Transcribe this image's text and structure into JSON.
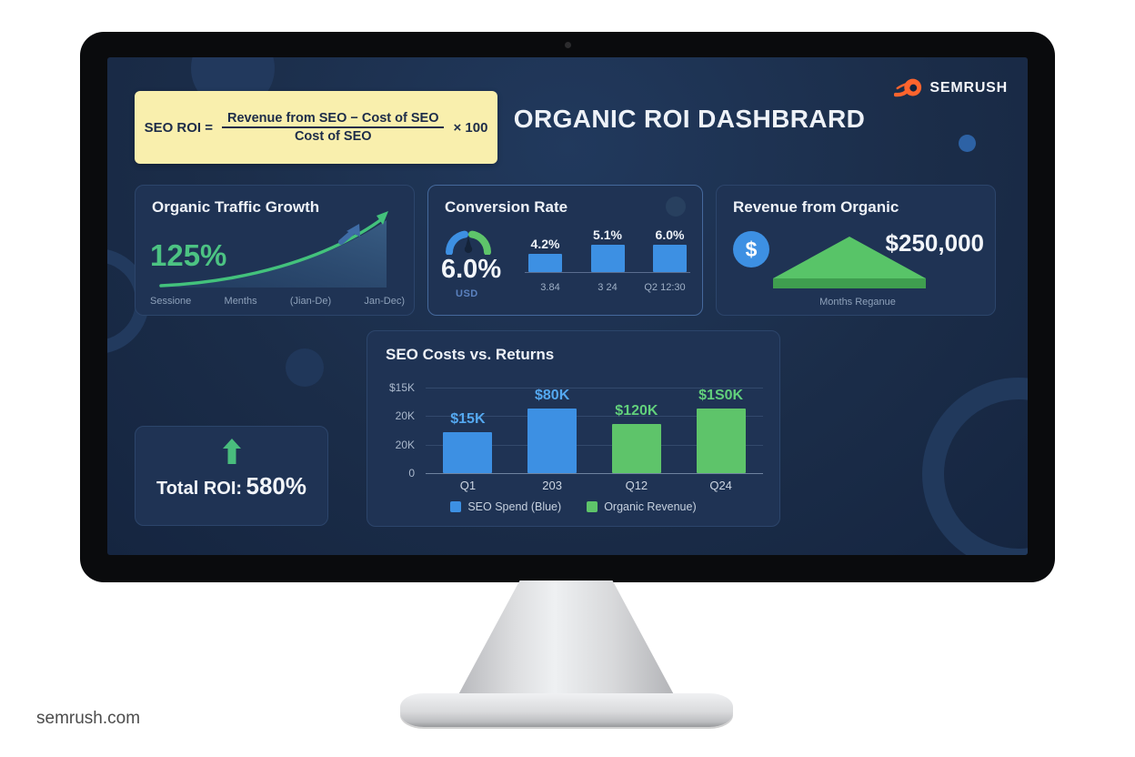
{
  "page": {
    "watermark": "semrush.com"
  },
  "brand": {
    "name": "SEMRUSH",
    "accent_orange": "#ff642d"
  },
  "dashboard": {
    "title": "ORGANIC ROI DASHBRARD",
    "formula": {
      "lhs": "SEO ROI =",
      "numerator": "Revenue from SEO − Cost of SEO",
      "denominator": "Cost of SEO",
      "multiplier": "× 100"
    },
    "traffic_card": {
      "title": "Organic Traffic Growth",
      "value": "125%"
    },
    "conversion_card": {
      "title": "Conversion Rate",
      "value": "6.0%",
      "unit": "USD"
    },
    "revenue_card": {
      "title": "Revenue from Organic",
      "value": "$250,000",
      "x_label": "Months Reganue",
      "dollar_symbol": "$"
    },
    "seo_chart_card": {
      "title": "SEO Costs vs. Returns"
    },
    "total_roi_card": {
      "label": "Total ROI:",
      "value": "580%"
    }
  },
  "colors": {
    "screen_bg": "#1b2d49",
    "card_bg": "#1f3354",
    "card_border": "#2c456b",
    "blue": "#3d90e3",
    "green": "#5ec46a",
    "green_accent": "#4cc383",
    "cream": "#f9efad",
    "gray_label": "#8ea1ba"
  },
  "chart_data": [
    {
      "id": "seo_costs_vs_returns",
      "type": "bar",
      "title": "SEO Costs vs. Returns",
      "categories": [
        "Q1",
        "203",
        "Q12",
        "Q24"
      ],
      "values": [
        15000,
        80000,
        120000,
        150000
      ],
      "bar_labels": [
        "$15K",
        "$80K",
        "$120K",
        "$1S0K"
      ],
      "bar_colors": [
        "#3d90e3",
        "#3d90e3",
        "#5ec46a",
        "#5ec46a"
      ],
      "label_colors": [
        "#54a8f0",
        "#54a8f0",
        "#62d07c",
        "#62d07c"
      ],
      "bar_heights_pct": [
        48,
        79,
        57,
        84
      ],
      "y_ticks": [
        "$15K",
        "20K",
        "20K",
        "0"
      ],
      "xlabel": "",
      "ylabel": "",
      "grid": true,
      "legend_position": "bottom",
      "legend": [
        {
          "label": "SEO Spend (Blue)",
          "color": "#3d90e3"
        },
        {
          "label": "Organic Revenue)",
          "color": "#5ec46a"
        }
      ]
    },
    {
      "id": "conversion_rate_trend",
      "type": "bar",
      "categories": [
        "3.84",
        "3 24",
        "Q2 12:30"
      ],
      "values": [
        4.2,
        5.1,
        6.0
      ],
      "bar_labels": [
        "4.2%",
        "5.1%",
        "6.0%"
      ],
      "bar_heights_pct": [
        40,
        72,
        100
      ],
      "bar_color": "#3d90e3",
      "headline_value": "6.0%",
      "unit": "USD",
      "grid": false
    },
    {
      "id": "organic_traffic_growth",
      "type": "line",
      "x": [
        "Sessione",
        "Menths",
        "(Jian-De)",
        "Jan-Dec)"
      ],
      "headline_value": "125%",
      "trend": "exponential-up"
    }
  ]
}
